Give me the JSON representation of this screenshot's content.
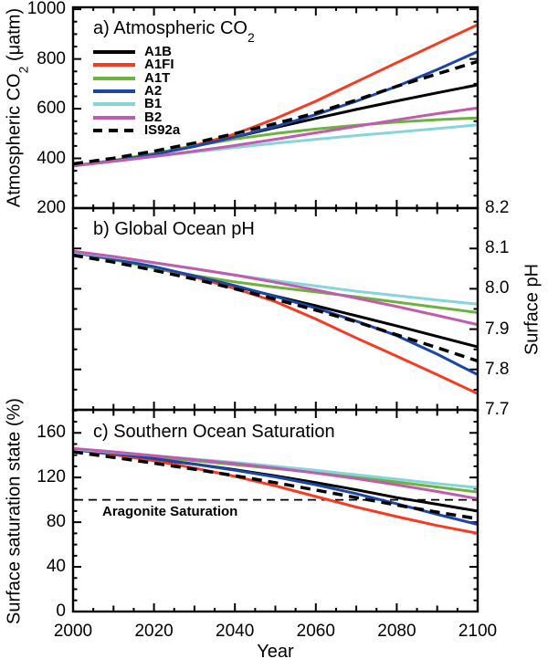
{
  "figure": {
    "background": "#ffffff",
    "axis_color": "#000000"
  },
  "x_axis": {
    "label": "Year",
    "lim": [
      2000,
      2100
    ],
    "tick_values": [
      2000,
      2020,
      2040,
      2060,
      2080,
      2100
    ],
    "tick_labels": [
      "2000",
      "2020",
      "2040",
      "2060",
      "2080",
      "2100"
    ],
    "medium_step": 10,
    "minor_step": 5
  },
  "legend": {
    "entries": [
      {
        "label": "A1B",
        "color": "#000000",
        "dashed": false
      },
      {
        "label": "A1FI",
        "color": "#f53b22",
        "dashed": false
      },
      {
        "label": "A1T",
        "color": "#6cb33d",
        "dashed": false
      },
      {
        "label": "A2",
        "color": "#1b45a6",
        "dashed": false
      },
      {
        "label": "B1",
        "color": "#86d5da",
        "dashed": false
      },
      {
        "label": "B2",
        "color": "#c05bb0",
        "dashed": false
      },
      {
        "label": "IS92a",
        "color": "#000000",
        "dashed": true
      }
    ]
  },
  "chart_data": [
    {
      "type": "line",
      "panel": "a",
      "title_prefix": "a) Atmospheric CO",
      "title_sub": "2",
      "title_suffix": "",
      "ylabel_prefix": "Atmospheric CO",
      "ylabel_sub": "2",
      "ylabel_suffix": " (μatm)",
      "ylim": [
        200,
        1008
      ],
      "ytick_values": [
        200,
        400,
        600,
        800,
        1000
      ],
      "ytick_labels": [
        "200",
        "400",
        "600",
        "800",
        "1000"
      ],
      "ytick_label_side": "left",
      "y_minor_step": 50,
      "x": [
        2000,
        2010,
        2020,
        2030,
        2040,
        2050,
        2060,
        2070,
        2080,
        2090,
        2100
      ],
      "series": [
        {
          "name": "A1B",
          "color": "#000000",
          "dashed": false,
          "values": [
            370,
            391,
            418,
            450,
            486,
            524,
            561,
            597,
            631,
            664,
            696
          ]
        },
        {
          "name": "A1FI",
          "color": "#f53b22",
          "dashed": false,
          "values": [
            370,
            391,
            418,
            452,
            498,
            560,
            630,
            708,
            785,
            862,
            938
          ]
        },
        {
          "name": "A1T",
          "color": "#6cb33d",
          "dashed": false,
          "values": [
            370,
            392,
            420,
            450,
            478,
            500,
            518,
            533,
            546,
            556,
            563
          ]
        },
        {
          "name": "A2",
          "color": "#1b45a6",
          "dashed": false,
          "values": [
            370,
            390,
            416,
            448,
            486,
            528,
            576,
            630,
            690,
            757,
            830
          ]
        },
        {
          "name": "B1",
          "color": "#86d5da",
          "dashed": false,
          "values": [
            370,
            388,
            407,
            426,
            444,
            461,
            477,
            492,
            506,
            520,
            535
          ]
        },
        {
          "name": "B2",
          "color": "#c05bb0",
          "dashed": false,
          "values": [
            370,
            388,
            408,
            429,
            452,
            477,
            503,
            529,
            555,
            580,
            603
          ]
        },
        {
          "name": "IS92a",
          "color": "#000000",
          "dashed": true,
          "values": [
            378,
            401,
            429,
            462,
            500,
            540,
            583,
            635,
            690,
            740,
            790
          ]
        }
      ]
    },
    {
      "type": "line",
      "panel": "b",
      "title_prefix": "b) Global Ocean pH",
      "title_sub": "",
      "title_suffix": "",
      "ylabel_prefix": "Surface pH",
      "ylabel_sub": "",
      "ylabel_suffix": "",
      "ylim": [
        7.7,
        8.2
      ],
      "ytick_values": [
        7.7,
        7.8,
        7.9,
        8.0,
        8.1,
        8.2
      ],
      "ytick_labels": [
        "7.7",
        "7.8",
        "7.9",
        "8.0",
        "8.1",
        "8.2"
      ],
      "ytick_label_side": "right",
      "y_minor_step": 0.05,
      "x": [
        2000,
        2010,
        2020,
        2030,
        2040,
        2050,
        2060,
        2070,
        2080,
        2090,
        2100
      ],
      "series": [
        {
          "name": "A1B",
          "color": "#000000",
          "dashed": false,
          "values": [
            8.09,
            8.073,
            8.052,
            8.03,
            8.006,
            7.982,
            7.958,
            7.933,
            7.908,
            7.882,
            7.856
          ]
        },
        {
          "name": "A1FI",
          "color": "#f53b22",
          "dashed": false,
          "values": [
            8.09,
            8.073,
            8.053,
            8.029,
            8.001,
            7.968,
            7.925,
            7.878,
            7.833,
            7.787,
            7.74
          ]
        },
        {
          "name": "A1T",
          "color": "#6cb33d",
          "dashed": false,
          "values": [
            8.09,
            8.072,
            8.052,
            8.033,
            8.017,
            8.004,
            7.992,
            7.98,
            7.967,
            7.954,
            7.941
          ]
        },
        {
          "name": "A2",
          "color": "#1b45a6",
          "dashed": false,
          "values": [
            8.09,
            8.074,
            8.055,
            8.032,
            8.008,
            7.981,
            7.952,
            7.92,
            7.884,
            7.838,
            7.787
          ]
        },
        {
          "name": "B1",
          "color": "#86d5da",
          "dashed": false,
          "values": [
            8.091,
            8.078,
            8.064,
            8.049,
            8.034,
            8.02,
            8.007,
            7.994,
            7.983,
            7.972,
            7.962
          ]
        },
        {
          "name": "B2",
          "color": "#c05bb0",
          "dashed": false,
          "values": [
            8.093,
            8.08,
            8.065,
            8.05,
            8.034,
            8.016,
            7.997,
            7.977,
            7.956,
            7.934,
            7.911
          ]
        },
        {
          "name": "IS92a",
          "color": "#000000",
          "dashed": true,
          "values": [
            8.083,
            8.066,
            8.046,
            8.024,
            8.0,
            7.974,
            7.947,
            7.918,
            7.886,
            7.854,
            7.821
          ]
        }
      ]
    },
    {
      "type": "line",
      "panel": "c",
      "title_prefix": "c) Southern Ocean Saturation",
      "title_sub": "",
      "title_suffix": "",
      "ylabel_prefix": "Surface saturation state (%)",
      "ylabel_sub": "",
      "ylabel_suffix": "",
      "ylim": [
        0,
        180.6
      ],
      "ytick_values": [
        0,
        40,
        80,
        120,
        160
      ],
      "ytick_labels": [
        "0",
        "40",
        "80",
        "120",
        "160"
      ],
      "ytick_label_side": "left",
      "y_minor_step": 10,
      "annotation": {
        "text": "Aragonite Saturation",
        "value": 100
      },
      "x": [
        2000,
        2010,
        2020,
        2030,
        2040,
        2050,
        2060,
        2070,
        2080,
        2090,
        2100
      ],
      "series": [
        {
          "name": "A1B",
          "color": "#000000",
          "dashed": false,
          "values": [
            145,
            141,
            136.5,
            132,
            127,
            121.5,
            115.5,
            109,
            102,
            96,
            90
          ]
        },
        {
          "name": "A1FI",
          "color": "#f53b22",
          "dashed": false,
          "values": [
            145,
            140.5,
            135,
            128.5,
            121,
            112.5,
            103,
            93.5,
            85,
            77,
            70
          ]
        },
        {
          "name": "A1T",
          "color": "#6cb33d",
          "dashed": false,
          "values": [
            145,
            142,
            138.5,
            135,
            131.5,
            128,
            124.5,
            120.5,
            116,
            111.5,
            107
          ]
        },
        {
          "name": "A2",
          "color": "#1b45a6",
          "dashed": false,
          "values": [
            145,
            141.5,
            137,
            132,
            126.5,
            120.5,
            113.5,
            105.5,
            96.5,
            87,
            78
          ]
        },
        {
          "name": "B1",
          "color": "#86d5da",
          "dashed": false,
          "values": [
            145.5,
            142.5,
            139.5,
            136.5,
            133.5,
            130,
            126.5,
            122.5,
            118.5,
            114.5,
            111
          ]
        },
        {
          "name": "B2",
          "color": "#c05bb0",
          "dashed": false,
          "values": [
            146,
            143,
            139.5,
            136,
            132.5,
            128.5,
            124,
            119,
            113.5,
            107.5,
            101
          ]
        },
        {
          "name": "IS92a",
          "color": "#000000",
          "dashed": true,
          "values": [
            143,
            138,
            132.8,
            127.4,
            121.6,
            115.4,
            108.8,
            102,
            95.4,
            89,
            83
          ]
        }
      ]
    }
  ]
}
